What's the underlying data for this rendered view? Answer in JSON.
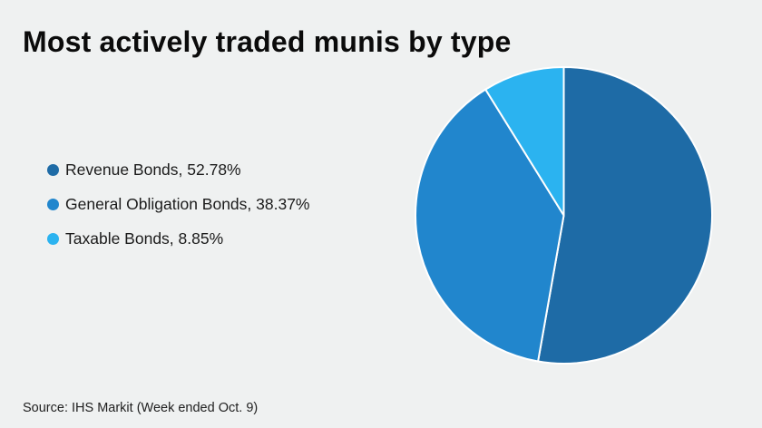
{
  "page": {
    "background_color": "#eff1f1"
  },
  "title": "Most actively traded munis by type",
  "legend": {
    "items": [
      {
        "label": "Revenue Bonds, 52.78%",
        "color": "#1e6ba6"
      },
      {
        "label": "General Obligation Bonds, 38.37%",
        "color": "#2186cd"
      },
      {
        "label": "Taxable Bonds, 8.85%",
        "color": "#2bb3f0"
      }
    ]
  },
  "chart_data": {
    "type": "pie",
    "title": "Most actively traded munis by type",
    "labels": [
      "Revenue Bonds",
      "General Obligation Bonds",
      "Taxable Bonds"
    ],
    "values": [
      52.78,
      38.37,
      8.85
    ],
    "colors": [
      "#1e6ba6",
      "#2186cd",
      "#2bb3f0"
    ],
    "start_angle_deg": 0,
    "direction": "clockwise",
    "slice_border_color": "#ffffff",
    "slice_border_width": 2,
    "legend_position": "left"
  },
  "source": "Source: IHS Markit (Week ended Oct. 9)"
}
